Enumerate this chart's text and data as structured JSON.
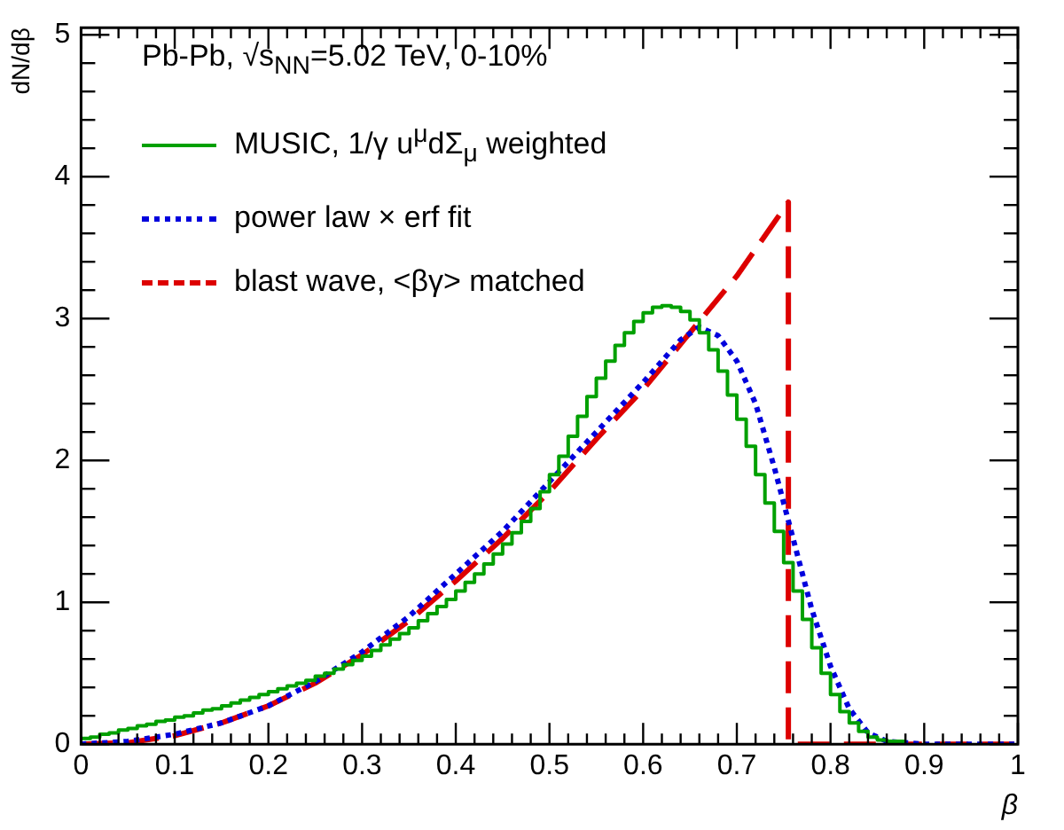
{
  "chart_data": {
    "type": "line",
    "xlabel": "β",
    "ylabel": "dN/dβ",
    "xlim": [
      0,
      1
    ],
    "ylim": [
      0,
      5.05
    ],
    "xticks": [
      0,
      0.1,
      0.2,
      0.3,
      0.4,
      0.5,
      0.6,
      0.7,
      0.8,
      0.9,
      1
    ],
    "yticks": [
      0,
      1,
      2,
      3,
      4,
      5
    ],
    "grid": false,
    "legend": "top left",
    "marker": "none",
    "annotations": [
      "Pb-Pb, √s$_{NN}$=5.02 TeV, 0-10%"
    ],
    "series": [
      {
        "type": "step",
        "name": "MUSIC, 1/γ u$^{μ}$dΣ$_{μ}$ weighted",
        "color": "#00a000",
        "line_style": "solid",
        "x": [
          0,
          0.01,
          0.02,
          0.03,
          0.04,
          0.05,
          0.06,
          0.07,
          0.08,
          0.09,
          0.1,
          0.11,
          0.12,
          0.13,
          0.14,
          0.15,
          0.16,
          0.17,
          0.18,
          0.19,
          0.2,
          0.21,
          0.22,
          0.23,
          0.24,
          0.25,
          0.26,
          0.27,
          0.28,
          0.29,
          0.3,
          0.31,
          0.32,
          0.33,
          0.34,
          0.35,
          0.36,
          0.37,
          0.38,
          0.39,
          0.4,
          0.41,
          0.42,
          0.43,
          0.44,
          0.45,
          0.46,
          0.47,
          0.48,
          0.49,
          0.5,
          0.51,
          0.52,
          0.53,
          0.54,
          0.55,
          0.56,
          0.57,
          0.58,
          0.59,
          0.6,
          0.61,
          0.62,
          0.63,
          0.64,
          0.65,
          0.66,
          0.67,
          0.68,
          0.69,
          0.7,
          0.71,
          0.72,
          0.73,
          0.74,
          0.75,
          0.76,
          0.77,
          0.78,
          0.79,
          0.8,
          0.81,
          0.82,
          0.83,
          0.84,
          0.85,
          0.86,
          0.87,
          0.88
        ],
        "values": [
          0.03,
          0.04,
          0.05,
          0.07,
          0.08,
          0.1,
          0.11,
          0.13,
          0.14,
          0.16,
          0.17,
          0.19,
          0.2,
          0.22,
          0.24,
          0.25,
          0.27,
          0.29,
          0.31,
          0.33,
          0.35,
          0.37,
          0.39,
          0.41,
          0.43,
          0.45,
          0.48,
          0.5,
          0.53,
          0.56,
          0.59,
          0.62,
          0.66,
          0.7,
          0.74,
          0.78,
          0.82,
          0.87,
          0.92,
          0.97,
          1.02,
          1.08,
          1.14,
          1.2,
          1.27,
          1.34,
          1.41,
          1.49,
          1.57,
          1.66,
          1.78,
          1.9,
          2.03,
          2.17,
          2.31,
          2.45,
          2.58,
          2.7,
          2.81,
          2.9,
          2.98,
          3.04,
          3.08,
          3.09,
          3.08,
          3.05,
          2.99,
          2.9,
          2.78,
          2.63,
          2.46,
          2.29,
          2.1,
          1.9,
          1.7,
          1.5,
          1.28,
          1.08,
          0.88,
          0.68,
          0.5,
          0.35,
          0.23,
          0.15,
          0.09,
          0.05,
          0.03,
          0.02,
          0.02
        ]
      },
      {
        "type": "line",
        "name": "power law × erf fit",
        "color": "#0000dd",
        "line_style": "dotted",
        "x": [
          0,
          0.05,
          0.1,
          0.15,
          0.2,
          0.25,
          0.3,
          0.35,
          0.4,
          0.45,
          0.5,
          0.55,
          0.6,
          0.64,
          0.66,
          0.68,
          0.7,
          0.72,
          0.74,
          0.76,
          0.78,
          0.8,
          0.82,
          0.84,
          0.86,
          0.9,
          1
        ],
        "values": [
          0,
          0.02,
          0.07,
          0.15,
          0.27,
          0.44,
          0.65,
          0.9,
          1.2,
          1.5,
          1.85,
          2.2,
          2.55,
          2.85,
          2.94,
          2.88,
          2.7,
          2.4,
          1.95,
          1.45,
          0.95,
          0.55,
          0.25,
          0.08,
          0.02,
          0,
          0
        ]
      },
      {
        "name": "blast wave, <βγ> matched",
        "color": "#dd0000",
        "line_style": "dashed",
        "x": [
          0,
          0.05,
          0.1,
          0.15,
          0.2,
          0.25,
          0.3,
          0.35,
          0.4,
          0.45,
          0.5,
          0.55,
          0.6,
          0.65,
          0.7,
          0.755,
          0.755,
          1
        ],
        "values": [
          0,
          0.01,
          0.06,
          0.15,
          0.27,
          0.43,
          0.63,
          0.87,
          1.15,
          1.45,
          1.78,
          2.15,
          2.5,
          2.9,
          3.3,
          3.82,
          0,
          0
        ]
      }
    ]
  }
}
